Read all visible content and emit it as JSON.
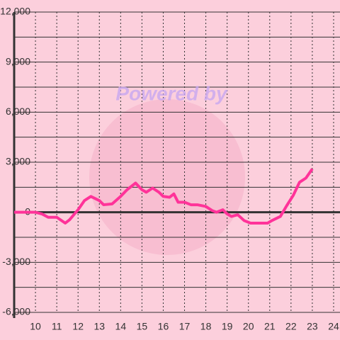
{
  "chart_data": {
    "type": "line",
    "watermark": "Powered by",
    "x": [
      9,
      10,
      10.3,
      10.6,
      11,
      11.4,
      11.6,
      12,
      12.3,
      12.6,
      13,
      13.2,
      13.6,
      14,
      14.3,
      14.7,
      15,
      15.2,
      15.5,
      15.8,
      16,
      16.3,
      16.5,
      16.7,
      17,
      17.3,
      17.6,
      18,
      18.3,
      18.5,
      18.8,
      19,
      19.2,
      19.5,
      19.8,
      20.1,
      20.9,
      21.1,
      21.5,
      21.8,
      22.1,
      22.4,
      22.7,
      23
    ],
    "series": [
      {
        "color": "#ff3399",
        "values": [
          0,
          0,
          -100,
          -300,
          -300,
          -650,
          -450,
          150,
          700,
          950,
          700,
          450,
          500,
          950,
          1350,
          1750,
          1350,
          1200,
          1450,
          1200,
          950,
          900,
          1100,
          600,
          600,
          450,
          450,
          350,
          100,
          0,
          150,
          -100,
          -250,
          -150,
          -500,
          -650,
          -650,
          -500,
          -250,
          400,
          1000,
          1800,
          2050,
          2600
        ]
      }
    ],
    "xlim": [
      9,
      24.3
    ],
    "xticks": [
      10,
      11,
      12,
      13,
      14,
      15,
      16,
      17,
      18,
      19,
      20,
      21,
      22,
      23,
      24
    ],
    "ylim": [
      -6000,
      12000
    ],
    "yticks": [
      {
        "value": -6000,
        "label": "-6,000"
      },
      {
        "value": -3000,
        "label": "-3,000"
      },
      0,
      {
        "value": 3000,
        "label": "3,000"
      },
      {
        "value": 6000,
        "label": "6,000"
      },
      {
        "value": 9000,
        "label": "9,000"
      },
      {
        "value": 12000,
        "label": "12,000"
      }
    ],
    "minor_yticks": [
      -4500,
      -1500,
      1500,
      4500,
      7500,
      10500
    ],
    "grid": true
  }
}
